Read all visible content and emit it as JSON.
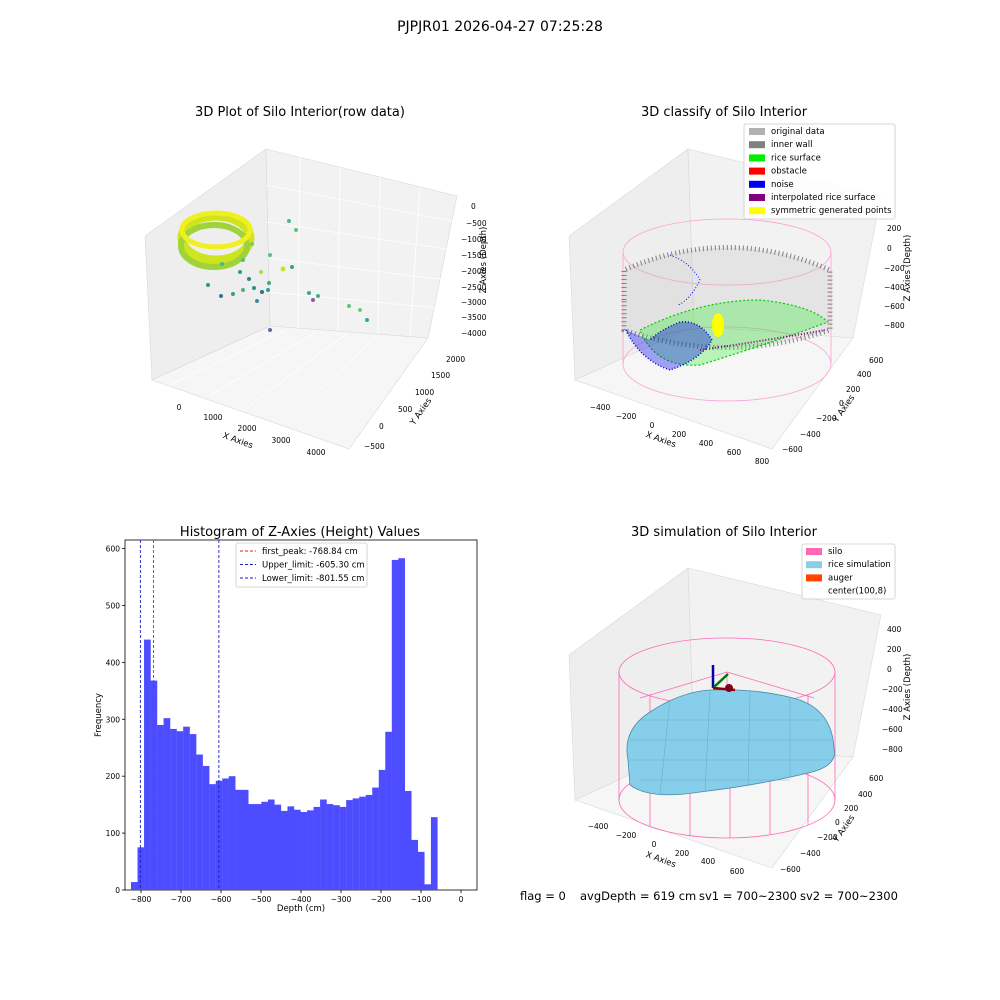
{
  "suptitle": "PJPJR01 2026-04-27 07:25:28",
  "status_line": {
    "flag": "flag = 0",
    "avg_depth": "avgDepth = 619 cm",
    "sv1": "sv1 = 700~2300",
    "sv2": "sv2 = 700~2300"
  },
  "colors": {
    "hist_bar": "#4d4dff",
    "first_peak": "#dd2222",
    "limits": "#1a1acc",
    "silo": "#ff69b4",
    "rice_simulation": "#87ceeb",
    "auger": "#ff4500",
    "inner_wall": "#808080",
    "rice_surface": "#00ee00",
    "noise": "#0000ee",
    "interpolated": "#800080",
    "symmetric": "#ffff00",
    "original": "#b0b0b0"
  },
  "chart_data": [
    {
      "type": "scatter",
      "title": "3D Plot of Silo Interior(row data)",
      "xlabel": "X Axies",
      "ylabel": "Y Axies",
      "zlabel": "Z Axies (Depth)",
      "xticks": [
        "0",
        "1000",
        "2000",
        "3000",
        "4000"
      ],
      "yticks": [
        "−500",
        "0",
        "500",
        "1000",
        "1500",
        "2000"
      ],
      "zticks": [
        "0",
        "−500",
        "−1000",
        "−1500",
        "−2000",
        "−2500",
        "−3000",
        "−3500",
        "−4000"
      ]
    },
    {
      "type": "scatter",
      "title": "3D classify of Silo Interior",
      "xlabel": "X Axies",
      "ylabel": "Y Axies",
      "zlabel": "Z Axies (Depth)",
      "xticks": [
        "−400",
        "−200",
        "0",
        "200",
        "400",
        "600",
        "800"
      ],
      "yticks": [
        "−600",
        "−400",
        "−200",
        "0",
        "200",
        "400",
        "600"
      ],
      "zticks": [
        "200",
        "0",
        "−200",
        "−400",
        "−600",
        "−800"
      ],
      "legend": [
        {
          "label": "original data",
          "color": "#b0b0b0"
        },
        {
          "label": "inner wall",
          "color": "#808080"
        },
        {
          "label": "rice surface",
          "color": "#00ee00"
        },
        {
          "label": "obstacle",
          "color": "#ff0000"
        },
        {
          "label": "noise",
          "color": "#0000ee"
        },
        {
          "label": "interpolated rice surface",
          "color": "#800080"
        },
        {
          "label": "symmetric generated points",
          "color": "#ffff00"
        }
      ]
    },
    {
      "type": "bar",
      "title": "Histogram of Z-Axies (Height) Values",
      "xlabel": "Depth (cm)",
      "ylabel": "Frequency",
      "xlim": [
        -840,
        40
      ],
      "ylim": [
        0,
        615
      ],
      "xticks": [
        -800,
        -700,
        -600,
        -500,
        -400,
        -300,
        -200,
        -100,
        0
      ],
      "yticks": [
        0,
        100,
        200,
        300,
        400,
        500,
        600
      ],
      "bin_start": -825,
      "bin_width": 16.3,
      "values": [
        14,
        75,
        440,
        368,
        290,
        302,
        283,
        279,
        287,
        274,
        238,
        218,
        186,
        192,
        196,
        200,
        176,
        176,
        151,
        151,
        155,
        159,
        150,
        139,
        147,
        141,
        137,
        140,
        146,
        159,
        151,
        149,
        146,
        158,
        161,
        164,
        167,
        180,
        211,
        278,
        580,
        583,
        174,
        88,
        67,
        10,
        128
      ],
      "reference_lines": [
        {
          "label": "first_peak: -768.84 cm",
          "value": -768.84,
          "style": "red"
        },
        {
          "label": "Upper_limit: -605.30 cm",
          "value": -605.3,
          "style": "blue"
        },
        {
          "label": "Lower_limit: -801.55 cm",
          "value": -801.55,
          "style": "blue"
        }
      ]
    },
    {
      "type": "surface",
      "title": "3D simulation of Silo Interior",
      "xlabel": "X Axies",
      "ylabel": "Y Axies",
      "zlabel": "Z Axies (Depth)",
      "xticks": [
        "−400",
        "−200",
        "0",
        "200",
        "400",
        "600"
      ],
      "yticks": [
        "−600",
        "−400",
        "−200",
        "0",
        "200",
        "400",
        "600"
      ],
      "zticks": [
        "400",
        "200",
        "0",
        "−200",
        "−400",
        "−600",
        "−800"
      ],
      "legend": [
        {
          "label": "silo",
          "color": "#ff69b4"
        },
        {
          "label": "rice simulation",
          "color": "#87ceeb"
        },
        {
          "label": "auger",
          "color": "#ff4500"
        },
        {
          "label": "center(100,8)",
          "color": ""
        }
      ]
    }
  ]
}
